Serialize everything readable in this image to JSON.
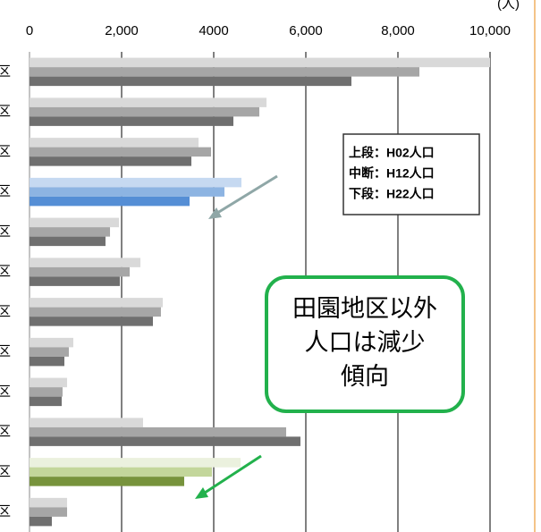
{
  "chart_data": {
    "type": "barh",
    "unit_label": "(人)",
    "categories": [
      "区",
      "区",
      "区",
      "区",
      "区",
      "区",
      "区",
      "区",
      "区",
      "区",
      "区",
      "区"
    ],
    "series": [
      {
        "name": "上段：H02人口",
        "values": [
          10000,
          5146,
          3670,
          4602,
          1942,
          2408,
          2893,
          951,
          816,
          2466,
          4583,
          816
        ],
        "colors": [
          "#d9d9d9",
          "#d9d9d9",
          "#d9d9d9",
          "#c6d9f1",
          "#d9d9d9",
          "#d9d9d9",
          "#d9d9d9",
          "#d9d9d9",
          "#d9d9d9",
          "#d9d9d9",
          "#ebf1de",
          "#d9d9d9"
        ]
      },
      {
        "name": "中断：H12人口",
        "values": [
          8466,
          4990,
          3942,
          4233,
          1748,
          2175,
          2854,
          854,
          718,
          5573,
          3961,
          816
        ],
        "colors": [
          "#a6a6a6",
          "#a6a6a6",
          "#a6a6a6",
          "#8db4e2",
          "#a6a6a6",
          "#a6a6a6",
          "#a6a6a6",
          "#a6a6a6",
          "#a6a6a6",
          "#a6a6a6",
          "#c3d69b",
          "#a6a6a6"
        ]
      },
      {
        "name": "下段：H22人口",
        "values": [
          6990,
          4427,
          3515,
          3476,
          1650,
          1961,
          2680,
          757,
          699,
          5883,
          3359,
          485
        ],
        "colors": [
          "#6f6f6f",
          "#6f6f6f",
          "#6f6f6f",
          "#558ed5",
          "#6f6f6f",
          "#6f6f6f",
          "#6f6f6f",
          "#6f6f6f",
          "#6f6f6f",
          "#6f6f6f",
          "#77933c",
          "#6f6f6f"
        ]
      }
    ],
    "xlim": [
      0,
      10000
    ],
    "xticks": [
      0,
      {
        "value": 2000,
        "label": "2,000"
      },
      4000,
      {
        "value": 6000,
        "label": "6,000"
      },
      {
        "value": 8000,
        "label": "8,000"
      },
      {
        "value": 10000,
        "label": "10,000"
      }
    ],
    "grid": true,
    "annotation": [
      "田園地区以外",
      "人口は減少",
      "傾向"
    ]
  }
}
